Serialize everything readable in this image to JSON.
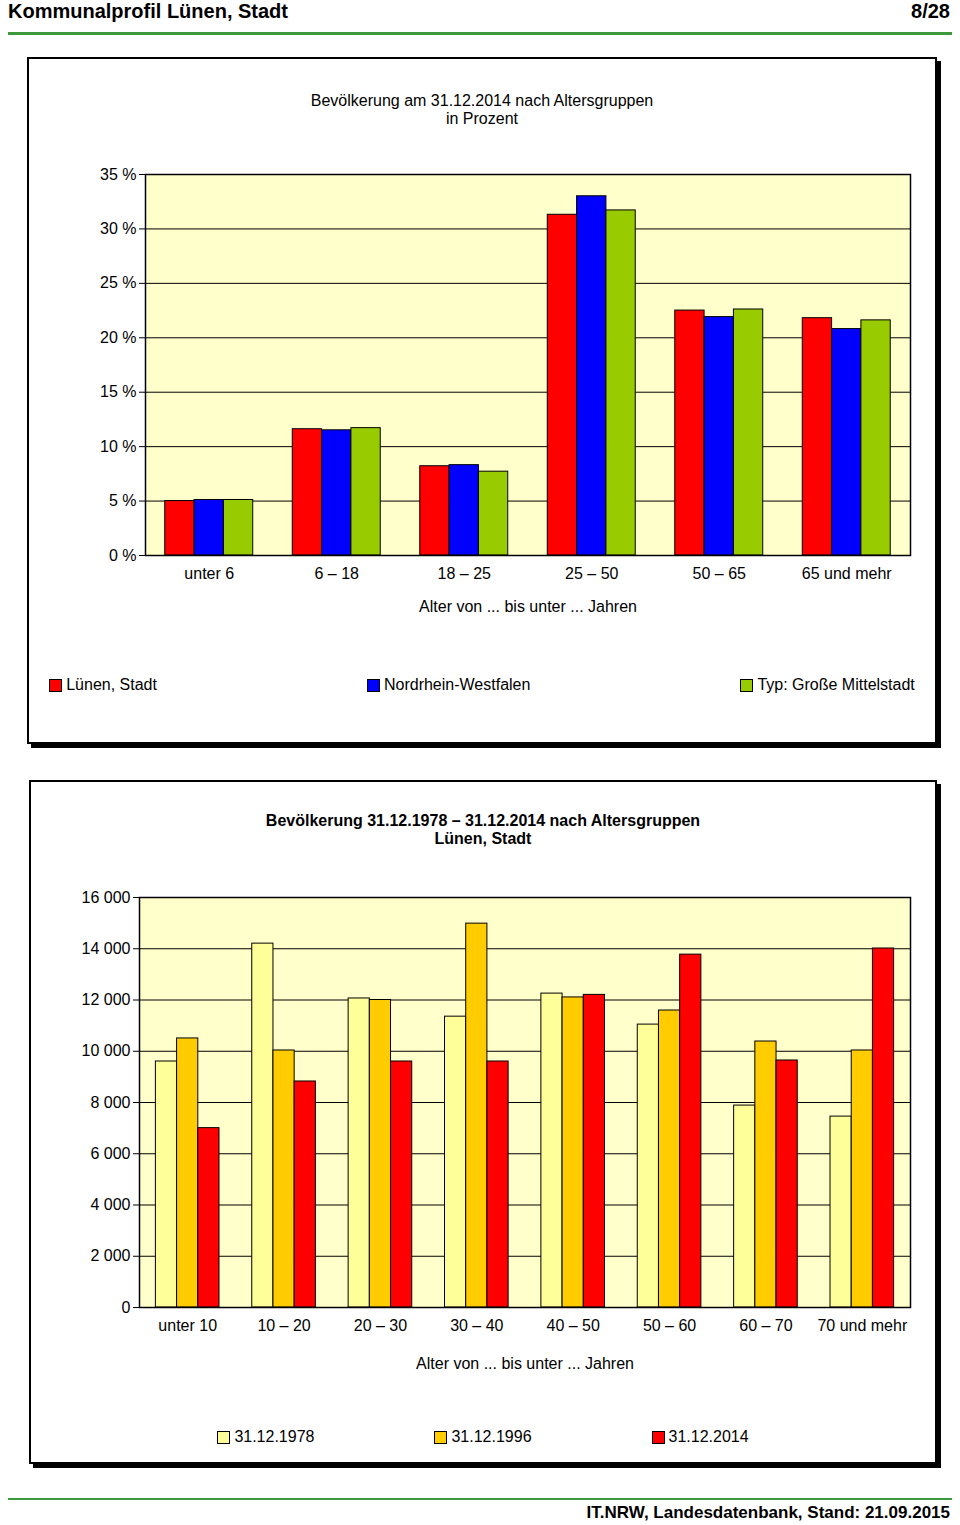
{
  "header": {
    "title": "Kommunalprofil Lünen, Stadt",
    "page": "8/28"
  },
  "footer": "IT.NRW, Landesdatenbank, Stand: 21.09.2015",
  "chart_data": [
    {
      "type": "bar",
      "title": "Bevölkerung am 31.12.2014 nach Altersgruppen",
      "subtitle": "in Prozent",
      "x_label": "Alter von ... bis unter ... Jahren",
      "categories": [
        "unter 6",
        "6 – 18",
        "18 – 25",
        "25 – 50",
        "50 – 65",
        "65 und mehr"
      ],
      "series": [
        {
          "name": "Lünen, Stadt",
          "color": "#ff0000",
          "values": [
            5.0,
            11.6,
            8.2,
            31.3,
            22.5,
            21.8
          ]
        },
        {
          "name": "Nordrhein-Westfalen",
          "color": "#0000ff",
          "values": [
            5.1,
            11.5,
            8.3,
            33.0,
            21.9,
            20.8
          ]
        },
        {
          "name": "Typ: Große Mittelstadt",
          "color": "#99cc00",
          "values": [
            5.1,
            11.7,
            7.7,
            31.7,
            22.6,
            21.6
          ]
        }
      ],
      "ylim": [
        0,
        35
      ],
      "yticks": [
        {
          "value": 0,
          "label": "0 %"
        },
        {
          "value": 5,
          "label": "5 %"
        },
        {
          "value": 10,
          "label": "10 %"
        },
        {
          "value": 15,
          "label": "15 %"
        },
        {
          "value": 20,
          "label": "20 %"
        },
        {
          "value": 25,
          "label": "25 %"
        },
        {
          "value": 30,
          "label": "30 %"
        },
        {
          "value": 35,
          "label": "35 %"
        }
      ],
      "grid": true,
      "legend": "bottom"
    },
    {
      "type": "bar",
      "title": "Bevölkerung 31.12.1978 – 31.12.2014 nach Altersgruppen",
      "subtitle": "Lünen, Stadt",
      "x_label": "Alter von ... bis unter ... Jahren",
      "categories": [
        "unter 10",
        "10 – 20",
        "20 – 30",
        "30 – 40",
        "40 – 50",
        "50 – 60",
        "60 – 70",
        "70 und mehr"
      ],
      "series": [
        {
          "name": "31.12.1978",
          "color": "#ffff99",
          "values": [
            9600,
            14200,
            12060,
            11350,
            12250,
            11040,
            7880,
            7450
          ]
        },
        {
          "name": "31.12.1996",
          "color": "#ffcc00",
          "values": [
            10500,
            10030,
            12000,
            14980,
            12100,
            11590,
            10380,
            10030
          ]
        },
        {
          "name": "31.12.2014",
          "color": "#ff0000",
          "values": [
            7000,
            8820,
            9600,
            9600,
            12200,
            13770,
            9640,
            14010
          ]
        }
      ],
      "ylim": [
        0,
        16000
      ],
      "yticks": [
        0,
        {
          "value": 2000,
          "label": "2 000"
        },
        {
          "value": 4000,
          "label": "4 000"
        },
        {
          "value": 6000,
          "label": "6 000"
        },
        {
          "value": 8000,
          "label": "8 000"
        },
        {
          "value": 10000,
          "label": "10 000"
        },
        {
          "value": 12000,
          "label": "12 000"
        },
        {
          "value": 14000,
          "label": "14 000"
        },
        {
          "value": 16000,
          "label": "16 000"
        }
      ],
      "grid": true,
      "legend": "bottom"
    }
  ]
}
